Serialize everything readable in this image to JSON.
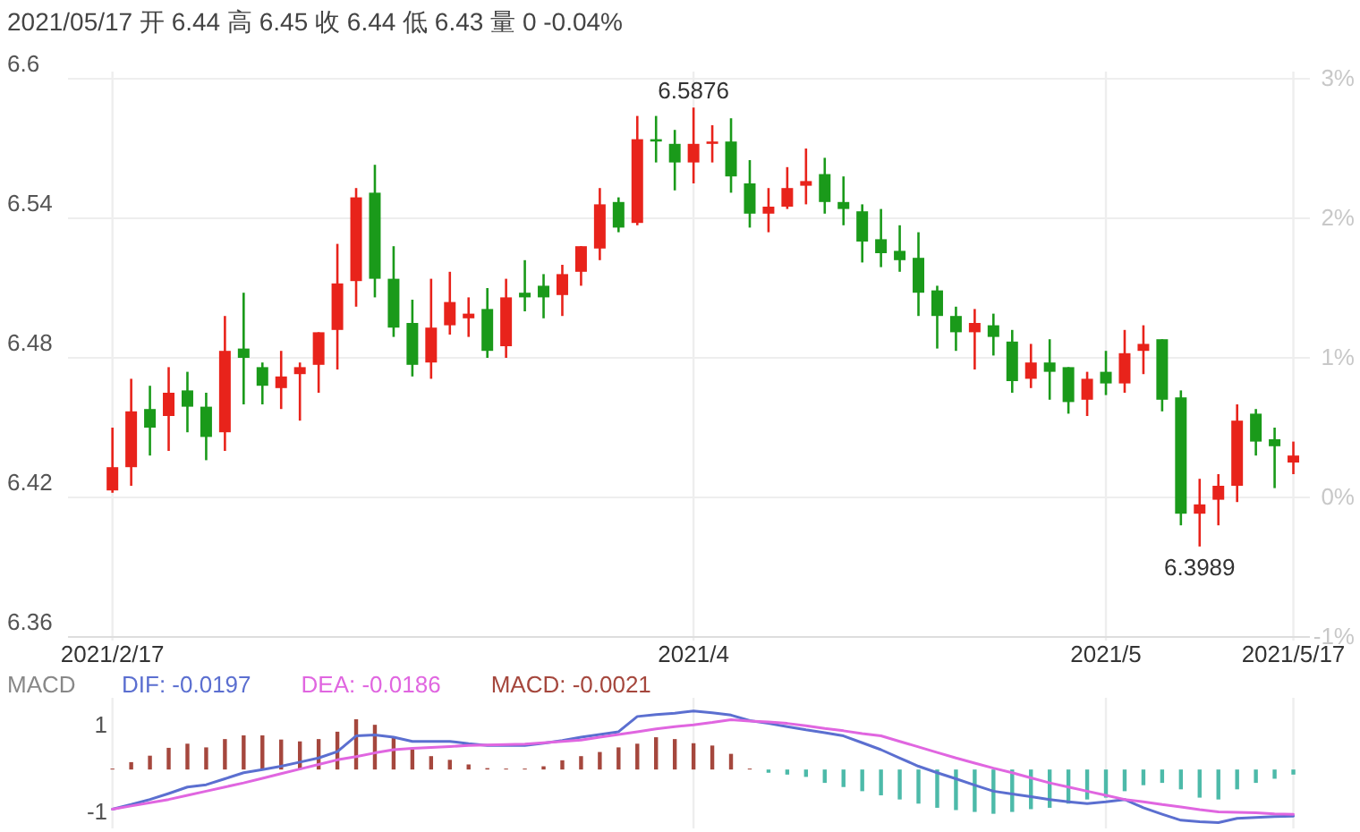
{
  "chart_data": [
    {
      "type": "candlestick",
      "title": "2021/05/17 开 6.44 高 6.45 收 6.44 低 6.43 量 0 -0.04%",
      "categories": [
        "2021/2/17",
        null,
        null,
        null,
        null,
        null,
        null,
        null,
        null,
        null,
        null,
        null,
        null,
        null,
        null,
        null,
        null,
        null,
        null,
        null,
        null,
        null,
        null,
        null,
        null,
        null,
        null,
        null,
        null,
        null,
        null,
        "2021/4",
        null,
        null,
        null,
        null,
        null,
        null,
        null,
        null,
        null,
        null,
        null,
        null,
        null,
        null,
        null,
        null,
        null,
        null,
        null,
        null,
        null,
        "2021/5",
        null,
        null,
        null,
        null,
        null,
        null,
        null,
        null,
        null,
        "2021/5/17"
      ],
      "ohlc": [
        [
          6.423,
          6.45,
          6.422,
          6.433
        ],
        [
          6.433,
          6.471,
          6.425,
          6.457
        ],
        [
          6.458,
          6.468,
          6.438,
          6.45
        ],
        [
          6.455,
          6.476,
          6.44,
          6.465
        ],
        [
          6.466,
          6.474,
          6.448,
          6.459
        ],
        [
          6.459,
          6.465,
          6.436,
          6.446
        ],
        [
          6.448,
          6.498,
          6.44,
          6.483
        ],
        [
          6.484,
          6.508,
          6.46,
          6.48
        ],
        [
          6.476,
          6.478,
          6.46,
          6.468
        ],
        [
          6.467,
          6.483,
          6.458,
          6.472
        ],
        [
          6.473,
          6.478,
          6.453,
          6.476
        ],
        [
          6.477,
          6.491,
          6.465,
          6.491
        ],
        [
          6.492,
          6.529,
          6.475,
          6.512
        ],
        [
          6.513,
          6.553,
          6.502,
          6.549
        ],
        [
          6.551,
          6.563,
          6.506,
          6.514
        ],
        [
          6.514,
          6.528,
          6.489,
          6.493
        ],
        [
          6.495,
          6.505,
          6.472,
          6.477
        ],
        [
          6.478,
          6.514,
          6.471,
          6.493
        ],
        [
          6.494,
          6.517,
          6.49,
          6.504
        ],
        [
          6.497,
          6.506,
          6.489,
          6.499
        ],
        [
          6.501,
          6.51,
          6.48,
          6.483
        ],
        [
          6.485,
          6.514,
          6.48,
          6.506
        ],
        [
          6.508,
          6.522,
          6.5,
          6.506
        ],
        [
          6.511,
          6.516,
          6.497,
          6.506
        ],
        [
          6.507,
          6.52,
          6.498,
          6.516
        ],
        [
          6.517,
          6.528,
          6.511,
          6.528
        ],
        [
          6.527,
          6.553,
          6.522,
          6.546
        ],
        [
          6.547,
          6.549,
          6.534,
          6.536
        ],
        [
          6.538,
          6.584,
          6.537,
          6.574
        ],
        [
          6.574,
          6.584,
          6.564,
          6.573
        ],
        [
          6.572,
          6.578,
          6.552,
          6.564
        ],
        [
          6.564,
          6.5876,
          6.555,
          6.572
        ],
        [
          6.572,
          6.58,
          6.564,
          6.573
        ],
        [
          6.573,
          6.583,
          6.551,
          6.558
        ],
        [
          6.555,
          6.565,
          6.536,
          6.542
        ],
        [
          6.542,
          6.553,
          6.534,
          6.545
        ],
        [
          6.545,
          6.562,
          6.544,
          6.553
        ],
        [
          6.554,
          6.57,
          6.546,
          6.556
        ],
        [
          6.559,
          6.566,
          6.542,
          6.547
        ],
        [
          6.547,
          6.558,
          6.537,
          6.544
        ],
        [
          6.543,
          6.546,
          6.521,
          6.53
        ],
        [
          6.531,
          6.544,
          6.519,
          6.525
        ],
        [
          6.526,
          6.537,
          6.517,
          6.522
        ],
        [
          6.523,
          6.534,
          6.498,
          6.508
        ],
        [
          6.509,
          6.511,
          6.484,
          6.498
        ],
        [
          6.498,
          6.502,
          6.483,
          6.491
        ],
        [
          6.491,
          6.501,
          6.475,
          6.495
        ],
        [
          6.494,
          6.499,
          6.481,
          6.489
        ],
        [
          6.487,
          6.492,
          6.465,
          6.47
        ],
        [
          6.471,
          6.486,
          6.467,
          6.478
        ],
        [
          6.478,
          6.488,
          6.462,
          6.474
        ],
        [
          6.476,
          6.476,
          6.456,
          6.461
        ],
        [
          6.462,
          6.474,
          6.455,
          6.471
        ],
        [
          6.474,
          6.483,
          6.464,
          6.469
        ],
        [
          6.469,
          6.492,
          6.465,
          6.482
        ],
        [
          6.483,
          6.494,
          6.473,
          6.486
        ],
        [
          6.488,
          6.488,
          6.457,
          6.462
        ],
        [
          6.463,
          6.466,
          6.408,
          6.413
        ],
        [
          6.413,
          6.428,
          6.3989,
          6.417
        ],
        [
          6.419,
          6.43,
          6.408,
          6.425
        ],
        [
          6.425,
          6.46,
          6.418,
          6.453
        ],
        [
          6.456,
          6.458,
          6.438,
          6.444
        ],
        [
          6.445,
          6.45,
          6.424,
          6.442
        ],
        [
          6.435,
          6.444,
          6.43,
          6.438
        ]
      ],
      "colors": [
        "#e8231b",
        "#e8231b",
        "#1a9a1a",
        "#e8231b",
        "#1a9a1a",
        "#1a9a1a",
        "#e8231b",
        "#1a9a1a",
        "#1a9a1a",
        "#e8231b",
        "#e8231b",
        "#e8231b",
        "#e8231b",
        "#e8231b",
        "#1a9a1a",
        "#1a9a1a",
        "#1a9a1a",
        "#e8231b",
        "#e8231b",
        "#e8231b",
        "#1a9a1a",
        "#e8231b",
        "#1a9a1a",
        "#1a9a1a",
        "#e8231b",
        "#e8231b",
        "#e8231b",
        "#1a9a1a",
        "#e8231b",
        "#1a9a1a",
        "#1a9a1a",
        "#e8231b",
        "#e8231b",
        "#1a9a1a",
        "#1a9a1a",
        "#e8231b",
        "#e8231b",
        "#e8231b",
        "#1a9a1a",
        "#1a9a1a",
        "#1a9a1a",
        "#1a9a1a",
        "#1a9a1a",
        "#1a9a1a",
        "#1a9a1a",
        "#1a9a1a",
        "#e8231b",
        "#1a9a1a",
        "#1a9a1a",
        "#e8231b",
        "#1a9a1a",
        "#1a9a1a",
        "#e8231b",
        "#1a9a1a",
        "#e8231b",
        "#e8231b",
        "#1a9a1a",
        "#1a9a1a",
        "#e8231b",
        "#e8231b",
        "#e8231b",
        "#1a9a1a",
        "#1a9a1a",
        "#e8231b"
      ],
      "ylim": [
        6.36,
        6.6
      ],
      "yticks": [
        6.36,
        6.42,
        6.48,
        6.54,
        6.6
      ],
      "y2lim": [
        -1,
        3
      ],
      "y2ticks": [
        {
          "value": -1,
          "label": "-1%"
        },
        {
          "value": 0,
          "label": "0%"
        },
        {
          "value": 1,
          "label": "1%"
        },
        {
          "value": 2,
          "label": "2%"
        },
        {
          "value": 3,
          "label": "3%"
        }
      ],
      "grid": true,
      "annotations": [
        {
          "text": "6.5876",
          "y": 6.5876
        },
        {
          "text": "6.3989",
          "y": 6.3989
        }
      ]
    },
    {
      "type": "bar",
      "title": "MACD",
      "categories": [
        "2021/2/17",
        null,
        null,
        null,
        null,
        null,
        null,
        null,
        null,
        null,
        null,
        null,
        null,
        null,
        null,
        null,
        null,
        null,
        null,
        null,
        null,
        null,
        null,
        null,
        null,
        null,
        null,
        null,
        null,
        null,
        null,
        "2021/4",
        null,
        null,
        null,
        null,
        null,
        null,
        null,
        null,
        null,
        null,
        null,
        null,
        null,
        null,
        null,
        null,
        null,
        null,
        null,
        null,
        null,
        "2021/5",
        null,
        null,
        null,
        null,
        null,
        null,
        null,
        null,
        null,
        "2021/5/17"
      ],
      "series": [
        {
          "name": "DIF: -0.0197",
          "type": "line",
          "color": "#5b6fd0",
          "values": [
            -0.86,
            -0.76,
            -0.65,
            -0.52,
            -0.38,
            -0.33,
            -0.2,
            -0.07,
            0.0,
            0.07,
            0.16,
            0.25,
            0.39,
            0.73,
            0.75,
            0.7,
            0.61,
            0.61,
            0.61,
            0.56,
            0.52,
            0.52,
            0.52,
            0.57,
            0.63,
            0.7,
            0.76,
            0.82,
            1.15,
            1.19,
            1.22,
            1.27,
            1.23,
            1.18,
            1.06,
            1.0,
            0.93,
            0.86,
            0.8,
            0.73,
            0.58,
            0.43,
            0.25,
            0.07,
            -0.07,
            -0.2,
            -0.34,
            -0.47,
            -0.53,
            -0.59,
            -0.65,
            -0.7,
            -0.74,
            -0.7,
            -0.65,
            -0.83,
            -0.97,
            -1.1,
            -1.13,
            -1.15,
            -1.06,
            -1.04,
            -1.02,
            -1.01
          ]
        },
        {
          "name": "DEA: -0.0186",
          "type": "line",
          "color": "#e066e0",
          "values": [
            -0.86,
            -0.79,
            -0.72,
            -0.65,
            -0.56,
            -0.47,
            -0.38,
            -0.29,
            -0.19,
            -0.09,
            0.01,
            0.11,
            0.21,
            0.28,
            0.36,
            0.43,
            0.46,
            0.48,
            0.5,
            0.52,
            0.53,
            0.54,
            0.55,
            0.58,
            0.61,
            0.64,
            0.7,
            0.76,
            0.82,
            0.88,
            0.93,
            0.97,
            1.02,
            1.08,
            1.05,
            1.03,
            1.0,
            0.95,
            0.89,
            0.84,
            0.78,
            0.73,
            0.61,
            0.49,
            0.37,
            0.25,
            0.14,
            0.03,
            -0.07,
            -0.18,
            -0.29,
            -0.38,
            -0.47,
            -0.56,
            -0.65,
            -0.7,
            -0.76,
            -0.81,
            -0.87,
            -0.92,
            -0.93,
            -0.94,
            -0.96,
            -0.97
          ]
        },
        {
          "name": "MACD: -0.0021",
          "color": "#a5473d",
          "values": [
            0.02,
            0.16,
            0.3,
            0.47,
            0.56,
            0.48,
            0.66,
            0.74,
            0.74,
            0.65,
            0.61,
            0.66,
            0.82,
            1.09,
            0.97,
            0.7,
            0.43,
            0.29,
            0.21,
            0.11,
            0.03,
            0.02,
            0.02,
            0.07,
            0.2,
            0.29,
            0.38,
            0.48,
            0.56,
            0.7,
            0.66,
            0.57,
            0.52,
            0.34,
            0.02,
            -0.07,
            -0.11,
            -0.16,
            -0.29,
            -0.38,
            -0.47,
            -0.56,
            -0.65,
            -0.74,
            -0.83,
            -0.88,
            -0.92,
            -0.96,
            -0.92,
            -0.86,
            -0.83,
            -0.74,
            -0.65,
            -0.61,
            -0.47,
            -0.34,
            -0.29,
            -0.43,
            -0.61,
            -0.65,
            -0.43,
            -0.29,
            -0.2,
            -0.11
          ],
          "colors": [
            "#a5473d",
            "#a5473d",
            "#a5473d",
            "#a5473d",
            "#a5473d",
            "#a5473d",
            "#a5473d",
            "#a5473d",
            "#a5473d",
            "#a5473d",
            "#a5473d",
            "#a5473d",
            "#a5473d",
            "#a5473d",
            "#a5473d",
            "#a5473d",
            "#a5473d",
            "#a5473d",
            "#a5473d",
            "#a5473d",
            "#a5473d",
            "#a5473d",
            "#a5473d",
            "#a5473d",
            "#a5473d",
            "#a5473d",
            "#a5473d",
            "#a5473d",
            "#a5473d",
            "#a5473d",
            "#a5473d",
            "#a5473d",
            "#a5473d",
            "#a5473d",
            "#a5473d",
            "#4dbaa9",
            "#4dbaa9",
            "#4dbaa9",
            "#4dbaa9",
            "#4dbaa9",
            "#4dbaa9",
            "#4dbaa9",
            "#4dbaa9",
            "#4dbaa9",
            "#4dbaa9",
            "#4dbaa9",
            "#4dbaa9",
            "#4dbaa9",
            "#4dbaa9",
            "#4dbaa9",
            "#4dbaa9",
            "#4dbaa9",
            "#4dbaa9",
            "#4dbaa9",
            "#4dbaa9",
            "#4dbaa9",
            "#4dbaa9",
            "#4dbaa9",
            "#4dbaa9",
            "#4dbaa9",
            "#4dbaa9",
            "#4dbaa9",
            "#4dbaa9",
            "#4dbaa9"
          ]
        }
      ],
      "ylim": [
        -1.2,
        1.4
      ],
      "yticks": [
        -1,
        1
      ],
      "tick_labels": "y",
      "grid": "x",
      "legend": "top left"
    }
  ]
}
